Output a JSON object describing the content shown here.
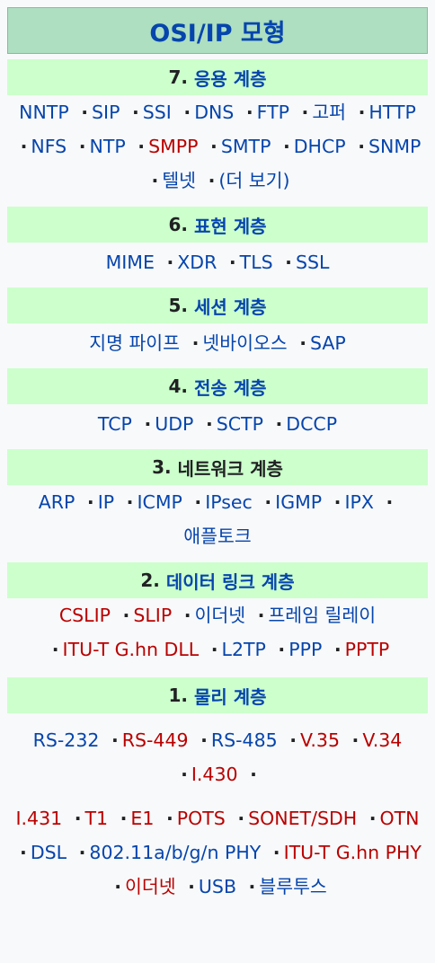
{
  "title": "OSI/IP 모형",
  "layers": [
    {
      "number": "7.",
      "name": "응용 계층",
      "items": [
        {
          "text": "NNTP",
          "red": false
        },
        {
          "text": "SIP",
          "red": false
        },
        {
          "text": "SSI",
          "red": false
        },
        {
          "text": "DNS",
          "red": false
        },
        {
          "text": "FTP",
          "red": false
        },
        {
          "text": "고퍼",
          "red": false
        },
        {
          "text": "HTTP",
          "red": false
        },
        {
          "text": "NFS",
          "red": false
        },
        {
          "text": "NTP",
          "red": false
        },
        {
          "text": "SMPP",
          "red": true
        },
        {
          "text": "SMTP",
          "red": false
        },
        {
          "text": "DHCP",
          "red": false
        },
        {
          "text": "SNMP",
          "red": false
        },
        {
          "text": "텔넷",
          "red": false
        },
        {
          "text": "(더 보기)",
          "red": false
        }
      ]
    },
    {
      "number": "6.",
      "name": "표현 계층",
      "items": [
        {
          "text": "MIME",
          "red": false
        },
        {
          "text": "XDR",
          "red": false
        },
        {
          "text": "TLS",
          "red": false
        },
        {
          "text": "SSL",
          "red": false
        }
      ]
    },
    {
      "number": "5.",
      "name": "세션 계층",
      "items": [
        {
          "text": "지명 파이프",
          "red": false
        },
        {
          "text": "넷바이오스",
          "red": false
        },
        {
          "text": "SAP",
          "red": false
        }
      ]
    },
    {
      "number": "4.",
      "name": "전송 계층",
      "items": [
        {
          "text": "TCP",
          "red": false
        },
        {
          "text": "UDP",
          "red": false
        },
        {
          "text": "SCTP",
          "red": false
        },
        {
          "text": "DCCP",
          "red": false
        }
      ]
    },
    {
      "number": "3.",
      "name": "네트워크 계층",
      "items": [
        {
          "text": "ARP",
          "red": false
        },
        {
          "text": "IP",
          "red": false
        },
        {
          "text": "ICMP",
          "red": false
        },
        {
          "text": "IPsec",
          "red": false
        },
        {
          "text": "IGMP",
          "red": false
        },
        {
          "text": "IPX",
          "red": false
        },
        {
          "text": "애플토크",
          "red": false
        }
      ]
    },
    {
      "number": "2.",
      "name": "데이터 링크 계층",
      "items": [
        {
          "text": "CSLIP",
          "red": true
        },
        {
          "text": "SLIP",
          "red": true
        },
        {
          "text": "이더넷",
          "red": false
        },
        {
          "text": "프레임 릴레이",
          "red": false
        },
        {
          "text": "ITU-T G.hn DLL",
          "red": true
        },
        {
          "text": "L2TP",
          "red": false
        },
        {
          "text": "PPP",
          "red": false
        },
        {
          "text": "PPTP",
          "red": true
        }
      ]
    },
    {
      "number": "1.",
      "name": "물리 계층",
      "items_a": [
        {
          "text": "RS-232",
          "red": false
        },
        {
          "text": "RS-449",
          "red": true
        },
        {
          "text": "RS-485",
          "red": false
        },
        {
          "text": "V.35",
          "red": true
        },
        {
          "text": "V.34",
          "red": true
        },
        {
          "text": "I.430",
          "red": true
        }
      ],
      "items_b": [
        {
          "text": "I.431",
          "red": true
        },
        {
          "text": "T1",
          "red": true
        },
        {
          "text": "E1",
          "red": true
        },
        {
          "text": "POTS",
          "red": true
        },
        {
          "text": "SONET/SDH",
          "red": true
        },
        {
          "text": "OTN",
          "red": true
        },
        {
          "text": "DSL",
          "red": false
        },
        {
          "text": "802.11a/b/g/n PHY",
          "red": false
        },
        {
          "text": "ITU-T G.hn PHY",
          "red": true
        },
        {
          "text": "이더넷",
          "red": true
        },
        {
          "text": "USB",
          "red": false
        },
        {
          "text": "블루투스",
          "red": false
        }
      ]
    }
  ],
  "colors": {
    "title_bg": "#addfc0",
    "group_bg": "#ccffcc",
    "link": "#0645ad",
    "redlink": "#ba0000"
  }
}
